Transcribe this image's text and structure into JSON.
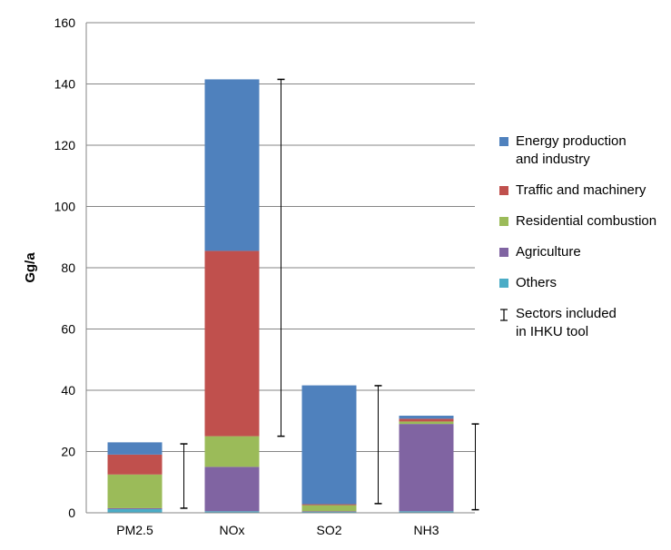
{
  "chart_data": {
    "type": "bar",
    "stacked": true,
    "title": "",
    "xlabel": "",
    "ylabel": "Gg/a",
    "ylim": [
      0,
      160
    ],
    "yticks": [
      "0",
      "20",
      "40",
      "60",
      "80",
      "100",
      "120",
      "140",
      "160"
    ],
    "grid": true,
    "legend_position": "right",
    "categories": [
      "PM2.5",
      "NOx",
      "SO2",
      "NH3"
    ],
    "series": [
      {
        "name": "Others",
        "color": "#4BACC6",
        "values": [
          1.2,
          0.5,
          0.3,
          0.5
        ]
      },
      {
        "name": "Agriculture",
        "color": "#8064A2",
        "values": [
          0.3,
          14.5,
          0.2,
          28.5
        ]
      },
      {
        "name": "Residential combustion",
        "color": "#9BBB59",
        "values": [
          11.0,
          10.0,
          2.0,
          0.8
        ]
      },
      {
        "name": "Traffic and machinery",
        "color": "#C0504D",
        "values": [
          6.5,
          60.5,
          0.3,
          0.9
        ]
      },
      {
        "name": "Energy production\nand industry",
        "color": "#4F81BD",
        "values": [
          4.0,
          56.0,
          38.8,
          1.0
        ]
      }
    ],
    "ranges": {
      "name": "Sectors included\nin IHKU tool",
      "values": [
        [
          1.5,
          22.5
        ],
        [
          25.0,
          141.5
        ],
        [
          3.0,
          41.5
        ],
        [
          1.0,
          29.0
        ]
      ]
    }
  }
}
